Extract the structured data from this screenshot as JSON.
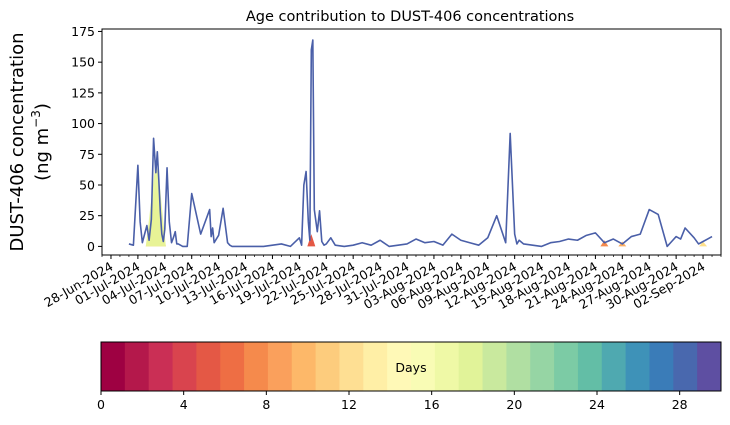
{
  "chart_data": {
    "type": "area",
    "title": "Age contribution to DUST-406 concentrations",
    "ylabel_line1": "DUST-406 concentration",
    "ylabel_line2_prefix": "(ng m",
    "ylabel_line2_sup": "−3",
    "ylabel_line2_suffix": ")",
    "xlabel": "",
    "ylim": [
      -7,
      177
    ],
    "xlim": [
      "2024-06-27",
      "2024-09-04"
    ],
    "yticks": [
      0,
      25,
      50,
      75,
      100,
      125,
      150,
      175
    ],
    "xtick_labels": [
      "28-Jun-2024",
      "01-Jul-2024",
      "04-Jul-2024",
      "07-Jul-2024",
      "10-Jul-2024",
      "13-Jul-2024",
      "16-Jul-2024",
      "19-Jul-2024",
      "22-Jul-2024",
      "25-Jul-2024",
      "28-Jul-2024",
      "31-Jul-2024",
      "03-Aug-2024",
      "06-Aug-2024",
      "09-Aug-2024",
      "12-Aug-2024",
      "15-Aug-2024",
      "18-Aug-2024",
      "21-Aug-2024",
      "24-Aug-2024",
      "27-Aug-2024",
      "30-Aug-2024",
      "02-Sep-2024"
    ],
    "grid": false,
    "series": [
      {
        "role": "total",
        "color": "#4a5fa8",
        "x": [
          "2024-06-30",
          "2024-06-30T12",
          "2024-07-01",
          "2024-07-01T06",
          "2024-07-01T12",
          "2024-07-01T18",
          "2024-07-02",
          "2024-07-02T06",
          "2024-07-02T12",
          "2024-07-02T18",
          "2024-07-03",
          "2024-07-03T04",
          "2024-07-03T08",
          "2024-07-03T12",
          "2024-07-03T16",
          "2024-07-03T20",
          "2024-07-04",
          "2024-07-04T06",
          "2024-07-04T12",
          "2024-07-04T18",
          "2024-07-05",
          "2024-07-05T04",
          "2024-07-05T08",
          "2024-07-05T12",
          "2024-07-05T18",
          "2024-07-06",
          "2024-07-06T12",
          "2024-07-07",
          "2024-07-08",
          "2024-07-09",
          "2024-07-09T04",
          "2024-07-09T08",
          "2024-07-09T12",
          "2024-07-10",
          "2024-07-10T12",
          "2024-07-11",
          "2024-07-11T06",
          "2024-07-11T12",
          "2024-07-11T18",
          "2024-07-12",
          "2024-07-13",
          "2024-07-15",
          "2024-07-16",
          "2024-07-17",
          "2024-07-18",
          "2024-07-19",
          "2024-07-19T06",
          "2024-07-19T12",
          "2024-07-19T18",
          "2024-07-20",
          "2024-07-20T04",
          "2024-07-20T08",
          "2024-07-20T12",
          "2024-07-20T16",
          "2024-07-21",
          "2024-07-21T06",
          "2024-07-21T12",
          "2024-07-21T18",
          "2024-07-22",
          "2024-07-22T12",
          "2024-07-23",
          "2024-07-24",
          "2024-07-25",
          "2024-07-26",
          "2024-07-27",
          "2024-07-28",
          "2024-07-29",
          "2024-07-30",
          "2024-07-31",
          "2024-08-01",
          "2024-08-02",
          "2024-08-03",
          "2024-08-04",
          "2024-08-05",
          "2024-08-06",
          "2024-08-07",
          "2024-08-08",
          "2024-08-09",
          "2024-08-10",
          "2024-08-11",
          "2024-08-11T12",
          "2024-08-12",
          "2024-08-12T06",
          "2024-08-12T12",
          "2024-08-13",
          "2024-08-14",
          "2024-08-15",
          "2024-08-16",
          "2024-08-17",
          "2024-08-18",
          "2024-08-19",
          "2024-08-20",
          "2024-08-21",
          "2024-08-22",
          "2024-08-23",
          "2024-08-24",
          "2024-08-25",
          "2024-08-26",
          "2024-08-27",
          "2024-08-28",
          "2024-08-29",
          "2024-08-29T12",
          "2024-08-30",
          "2024-08-30T12",
          "2024-08-31",
          "2024-09-01",
          "2024-09-01T12",
          "2024-09-02",
          "2024-09-02T12",
          "2024-09-03"
        ],
        "values": [
          2,
          1,
          66,
          20,
          3,
          10,
          17,
          5,
          22,
          88,
          60,
          77,
          54,
          28,
          10,
          4,
          14,
          64,
          20,
          3,
          8,
          12,
          2,
          2,
          1,
          0,
          0,
          43,
          10,
          30,
          8,
          15,
          3,
          9,
          31,
          3,
          1,
          0,
          0,
          0,
          0,
          0,
          1,
          2,
          0,
          7,
          1,
          50,
          61,
          20,
          5,
          160,
          168,
          30,
          12,
          29,
          4,
          1,
          2,
          7,
          1,
          0,
          1,
          3,
          1,
          5,
          0,
          1,
          2,
          6,
          3,
          4,
          1,
          10,
          5,
          3,
          1,
          7,
          25,
          3,
          92,
          10,
          2,
          5,
          2,
          1,
          0,
          3,
          4,
          6,
          5,
          9,
          11,
          3,
          6,
          2,
          8,
          10,
          30,
          26,
          0,
          4,
          8,
          6,
          15,
          7,
          2,
          4,
          6,
          8
        ],
        "_note": "list length mismatch guard"
      },
      {
        "role": "age-components",
        "description": "stacked colored age bands, mostly hidden beneath the total; visible near the early-July event",
        "peaks": [
          {
            "date": "2024-07-03",
            "value": 35,
            "color": "#fdae61"
          },
          {
            "date": "2024-07-03",
            "value": 50,
            "color": "#fee08b"
          },
          {
            "date": "2024-07-03",
            "value": 70,
            "color": "#e6f598"
          }
        ]
      }
    ],
    "colorbar": {
      "label": "Days",
      "min": 0,
      "max": 30,
      "ticks": [
        0,
        4,
        8,
        12,
        16,
        20,
        24,
        28
      ],
      "colors": [
        "#9e0142",
        "#b4184b",
        "#ca2f55",
        "#d9444e",
        "#e45845",
        "#ee6e44",
        "#f58a4c",
        "#faa05c",
        "#fdb869",
        "#fdcc7d",
        "#fedf93",
        "#ffefa6",
        "#fff9b7",
        "#f9fcb5",
        "#eff9a6",
        "#e1f399",
        "#c9e99e",
        "#b0dfa2",
        "#96d5a4",
        "#7ccba5",
        "#63bea6",
        "#4fa9b0",
        "#3e92b8",
        "#3a7cb8",
        "#4968ae",
        "#5e4fa2"
      ]
    }
  }
}
